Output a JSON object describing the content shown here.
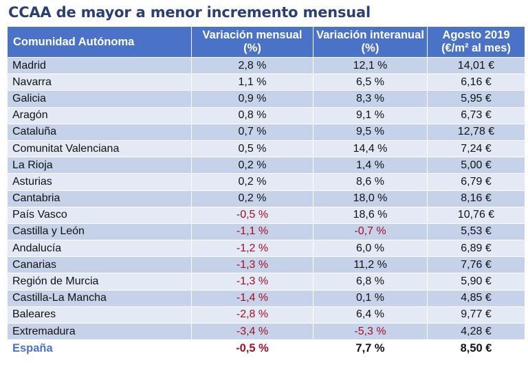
{
  "title": "CCAA de mayor a menor incremento mensual",
  "headers": {
    "region": "Comunidad Autónoma",
    "monthly": "Variación mensual (%)",
    "yearly": "Variación interanual (%)",
    "price": "Agosto 2019 (€/m² al mes)"
  },
  "rows": [
    {
      "region": "Madrid",
      "monthly": "2,8 %",
      "yearly": "12,1 %",
      "price": "14,01 €"
    },
    {
      "region": "Navarra",
      "monthly": "1,1 %",
      "yearly": "6,5 %",
      "price": "6,16 €"
    },
    {
      "region": "Galicia",
      "monthly": "0,9 %",
      "yearly": "8,3 %",
      "price": "5,95 €"
    },
    {
      "region": "Aragón",
      "monthly": "0,8 %",
      "yearly": "9,1 %",
      "price": "6,73 €"
    },
    {
      "region": "Cataluña",
      "monthly": "0,7 %",
      "yearly": "9,5 %",
      "price": "12,78 €"
    },
    {
      "region": "Comunitat Valenciana",
      "monthly": "0,5 %",
      "yearly": "14,4 %",
      "price": "7,24 €"
    },
    {
      "region": "La Rioja",
      "monthly": "0,2 %",
      "yearly": "1,4 %",
      "price": "5,00 €"
    },
    {
      "region": "Asturias",
      "monthly": "0,2 %",
      "yearly": "8,6 %",
      "price": "6,79 €"
    },
    {
      "region": "Cantabria",
      "monthly": "0,2 %",
      "yearly": "18,0 %",
      "price": "8,16 €"
    },
    {
      "region": "País Vasco",
      "monthly": "-0,5 %",
      "yearly": "18,6 %",
      "price": "10,76 €"
    },
    {
      "region": "Castilla y León",
      "monthly": "-1,1 %",
      "yearly": "-0,7 %",
      "price": "5,53 €"
    },
    {
      "region": "Andalucía",
      "monthly": "-1,2 %",
      "yearly": "6,0 %",
      "price": "6,89 €"
    },
    {
      "region": "Canarias",
      "monthly": "-1,3 %",
      "yearly": "11,2 %",
      "price": "7,76 €"
    },
    {
      "region": "Región de Murcia",
      "monthly": "-1,3 %",
      "yearly": "6,8 %",
      "price": "5,90 €"
    },
    {
      "region": "Castilla-La Mancha",
      "monthly": "-1,4 %",
      "yearly": "0,1 %",
      "price": "4,85 €"
    },
    {
      "region": "Baleares",
      "monthly": "-2,8 %",
      "yearly": "6,4 %",
      "price": "9,77 €"
    },
    {
      "region": "Extremadura",
      "monthly": "-3,4 %",
      "yearly": "-5,3 %",
      "price": "4,28 €"
    }
  ],
  "total": {
    "region": "España",
    "monthly": "-0,5 %",
    "yearly": "7,7 %",
    "price": "8,50 €"
  },
  "colors": {
    "header": "#4a72c6",
    "row_dark": "#c6d2ea",
    "row_light": "#e3e9f5",
    "negative": "#a01020",
    "title": "#2a3f74"
  }
}
